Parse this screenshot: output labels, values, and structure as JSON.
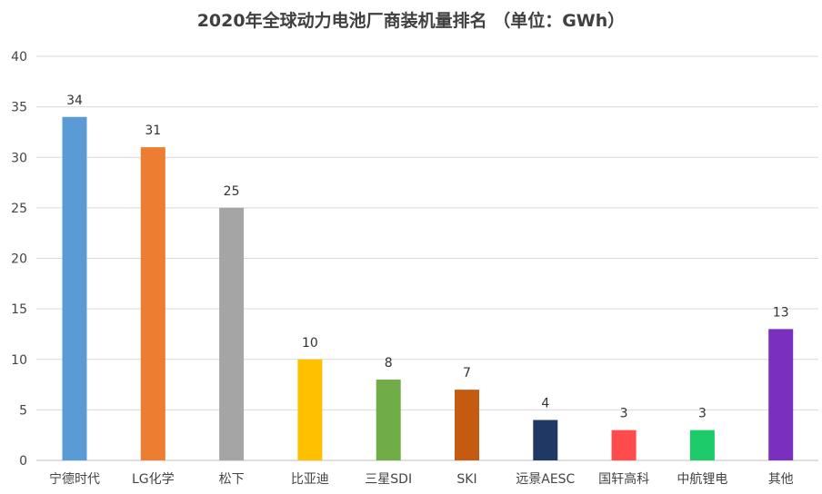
{
  "chart_data": {
    "type": "bar",
    "title": "2020年全球动力电池厂商装机量排名 （单位：GWh）",
    "categories": [
      "宁德时代",
      "LG化学",
      "松下",
      "比亚迪",
      "三星SDI",
      "SKI",
      "远景AESC",
      "国轩高科",
      "中航锂电",
      "其他"
    ],
    "values": [
      34,
      31,
      25,
      10,
      8,
      7,
      4,
      3,
      3,
      13
    ],
    "colors": [
      "#5B9BD5",
      "#ED7D31",
      "#A5A5A5",
      "#FFC000",
      "#70AD47",
      "#C55A11",
      "#203864",
      "#FF4B4B",
      "#1ECB6A",
      "#7B2FBE"
    ],
    "ylim": [
      0,
      40
    ],
    "yticks": [
      0,
      5,
      10,
      15,
      20,
      25,
      30,
      35,
      40
    ],
    "grid": true,
    "legend": "none"
  }
}
